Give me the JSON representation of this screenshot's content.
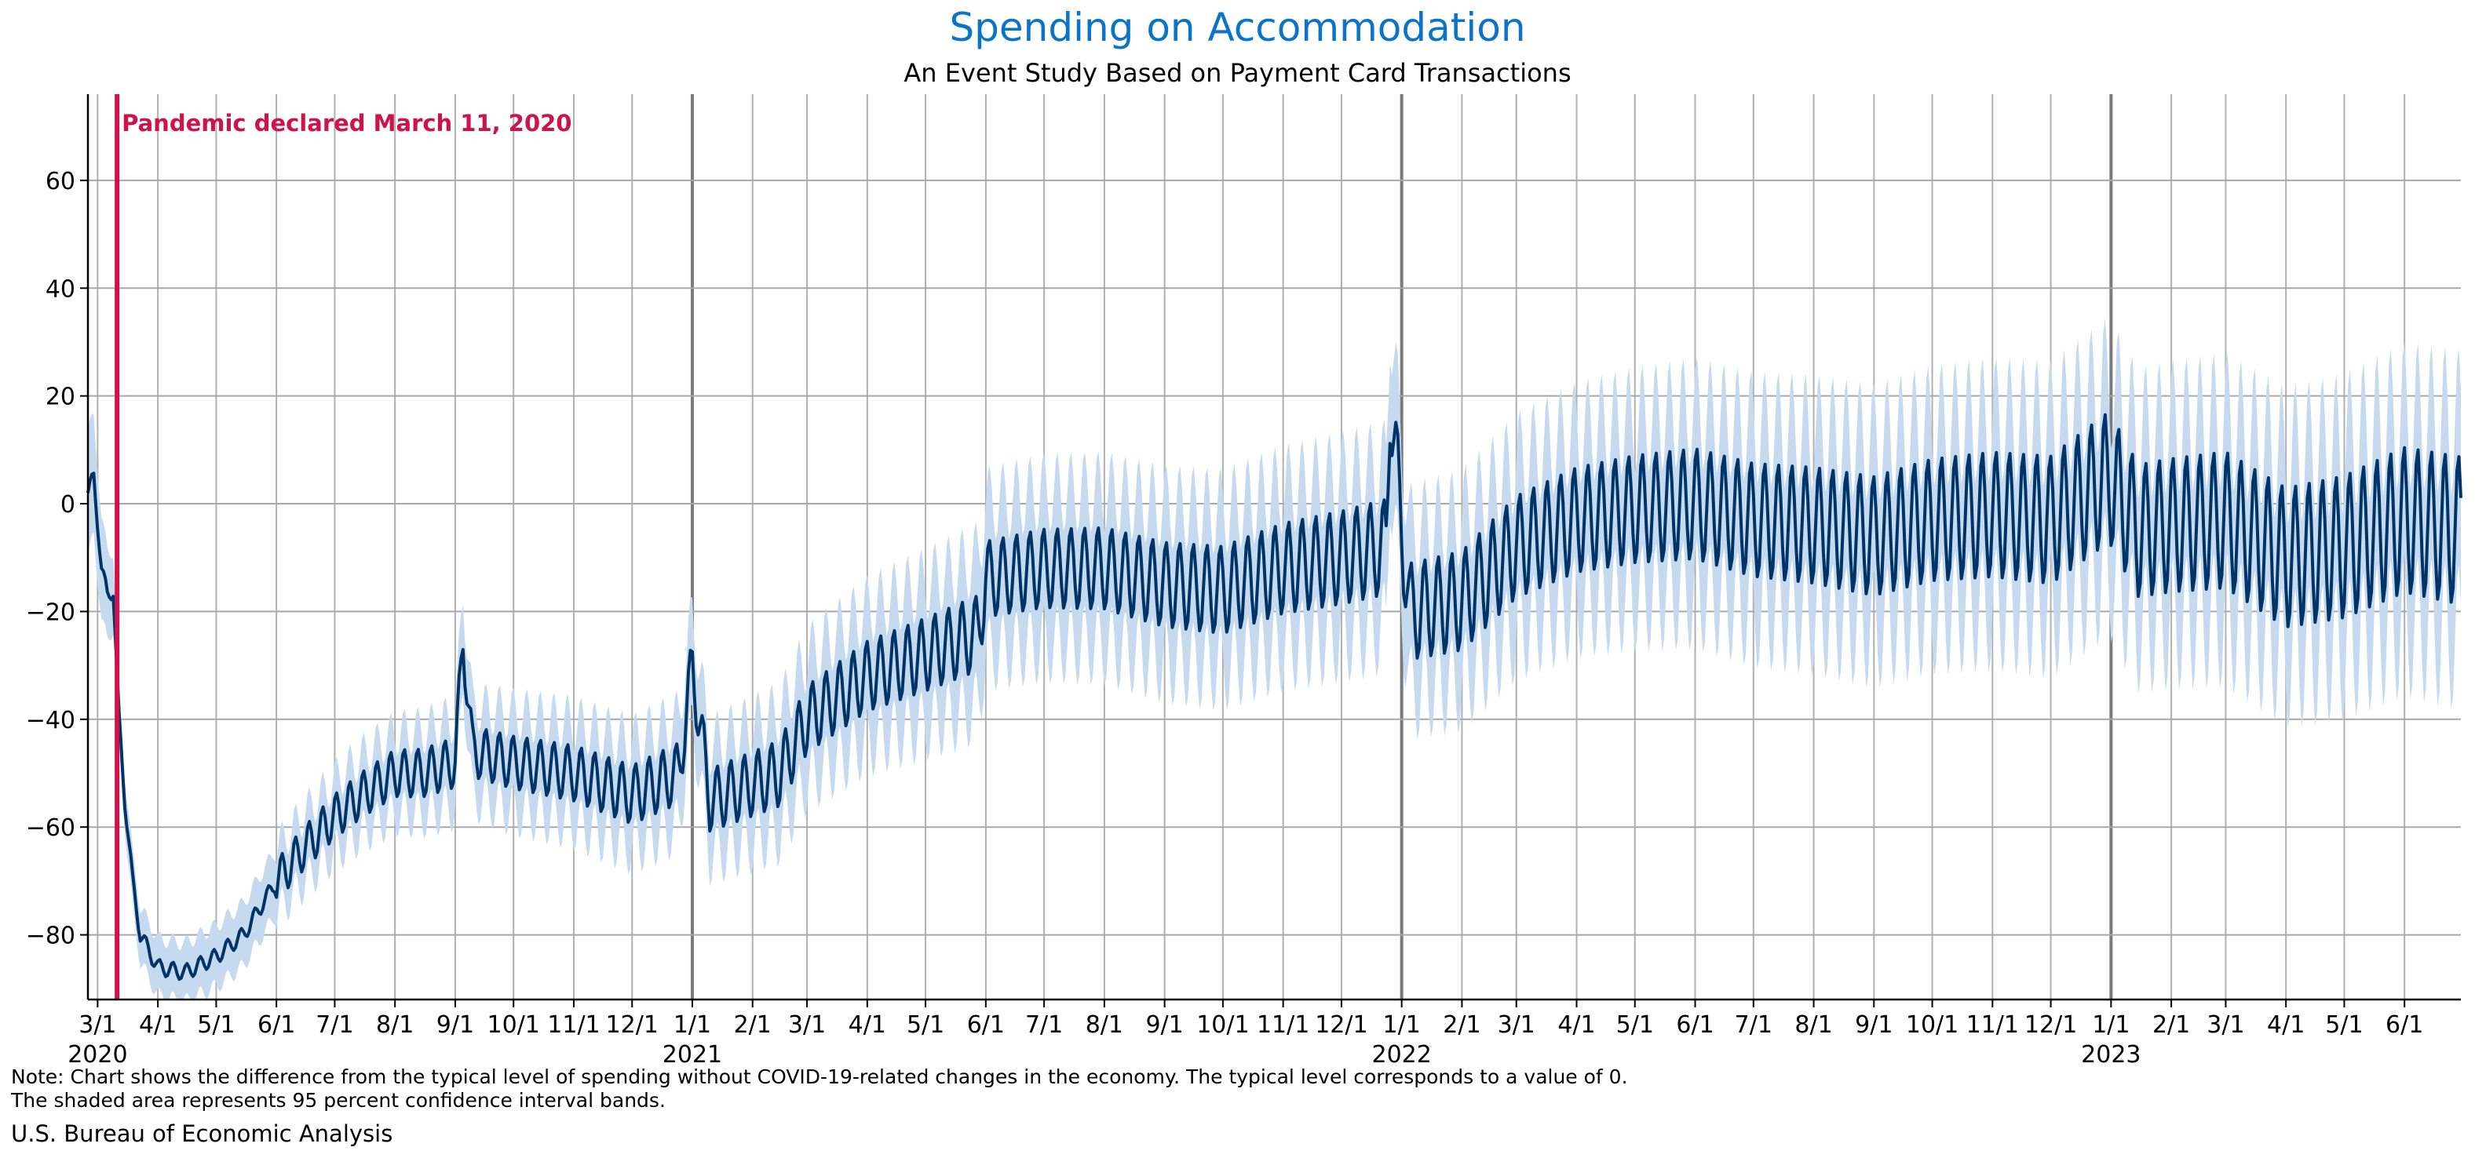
{
  "chart_data": {
    "type": "line",
    "title": "Spending on Accommodation",
    "subtitle": "An Event Study Based on Payment Card Transactions",
    "xlabel": "",
    "ylabel": "",
    "x_range": [
      "2020-02-25",
      "2023-06-30"
    ],
    "ylim": [
      -92,
      76
    ],
    "yticks": [
      -80,
      -60,
      -40,
      -20,
      0,
      20,
      40,
      60
    ],
    "month_tick_labels": [
      "3/1",
      "4/1",
      "5/1",
      "6/1",
      "7/1",
      "8/1",
      "9/1",
      "10/1",
      "11/1",
      "12/1",
      "1/1",
      "2/1",
      "3/1",
      "4/1",
      "5/1",
      "6/1",
      "7/1",
      "8/1",
      "9/1",
      "10/1",
      "11/1",
      "12/1",
      "1/1",
      "2/1",
      "3/1",
      "4/1",
      "5/1",
      "6/1",
      "7/1",
      "8/1",
      "9/1",
      "10/1",
      "11/1",
      "12/1",
      "1/1",
      "2/1",
      "3/1",
      "4/1",
      "5/1",
      "6/1"
    ],
    "year_labels": [
      "2020",
      "2021",
      "2022",
      "2023"
    ],
    "grid": true,
    "annotation": {
      "date": "2020-03-11",
      "text": "Pandemic declared March 11, 2020",
      "color": "#d0114a"
    },
    "series": [
      {
        "role": "estimate",
        "color": "#003366",
        "points": [
          [
            "2020-02-25",
            2
          ],
          [
            "2020-02-28",
            5
          ],
          [
            "2020-03-03",
            -12
          ],
          [
            "2020-03-06",
            -17
          ],
          [
            "2020-03-09",
            -16
          ],
          [
            "2020-03-12",
            -40
          ],
          [
            "2020-03-15",
            -55
          ],
          [
            "2020-03-19",
            -70
          ],
          [
            "2020-03-23",
            -80
          ],
          [
            "2020-04-01",
            -86
          ],
          [
            "2020-04-15",
            -87
          ],
          [
            "2020-05-01",
            -84
          ],
          [
            "2020-05-15",
            -80
          ],
          [
            "2020-06-01",
            -70
          ],
          [
            "2020-06-15",
            -64
          ],
          [
            "2020-07-01",
            -58
          ],
          [
            "2020-07-15",
            -54
          ],
          [
            "2020-08-01",
            -50
          ],
          [
            "2020-08-15",
            -50
          ],
          [
            "2020-09-01",
            -48
          ],
          [
            "2020-09-05",
            -25
          ],
          [
            "2020-09-10",
            -46
          ],
          [
            "2020-10-01",
            -48
          ],
          [
            "2020-11-01",
            -50
          ],
          [
            "2020-12-01",
            -54
          ],
          [
            "2020-12-25",
            -50
          ],
          [
            "2021-01-01",
            -30
          ],
          [
            "2021-01-10",
            -55
          ],
          [
            "2021-02-01",
            -52
          ],
          [
            "2021-02-15",
            -50
          ],
          [
            "2021-03-01",
            -40
          ],
          [
            "2021-04-01",
            -32
          ],
          [
            "2021-05-01",
            -28
          ],
          [
            "2021-05-28",
            -24
          ],
          [
            "2021-06-01",
            -14
          ],
          [
            "2021-07-01",
            -12
          ],
          [
            "2021-08-01",
            -12
          ],
          [
            "2021-09-01",
            -15
          ],
          [
            "2021-10-01",
            -16
          ],
          [
            "2021-11-01",
            -12
          ],
          [
            "2021-12-01",
            -10
          ],
          [
            "2021-12-24",
            -8
          ],
          [
            "2021-12-26",
            20
          ],
          [
            "2022-01-05",
            -20
          ],
          [
            "2022-02-01",
            -18
          ],
          [
            "2022-03-01",
            -8
          ],
          [
            "2022-04-01",
            -3
          ],
          [
            "2022-05-01",
            -1
          ],
          [
            "2022-06-01",
            0
          ],
          [
            "2022-07-01",
            -3
          ],
          [
            "2022-08-01",
            -4
          ],
          [
            "2022-09-01",
            -6
          ],
          [
            "2022-10-01",
            -3
          ],
          [
            "2022-11-01",
            -2
          ],
          [
            "2022-12-01",
            -3
          ],
          [
            "2022-12-31",
            5
          ],
          [
            "2023-01-15",
            -5
          ],
          [
            "2023-02-01",
            -4
          ],
          [
            "2023-03-01",
            -3
          ],
          [
            "2023-04-01",
            -10
          ],
          [
            "2023-05-01",
            -8
          ],
          [
            "2023-06-01",
            -3
          ],
          [
            "2023-06-30",
            -5
          ]
        ]
      },
      {
        "role": "confidence-band-95",
        "color": "#c5d9ef",
        "half_width_by_period": [
          [
            "2020-02-25",
            12
          ],
          [
            "2020-03-15",
            5
          ],
          [
            "2020-06-01",
            6
          ],
          [
            "2020-10-01",
            9
          ],
          [
            "2021-01-01",
            10
          ],
          [
            "2021-06-01",
            14
          ],
          [
            "2022-01-01",
            15
          ],
          [
            "2022-06-01",
            17
          ],
          [
            "2023-01-01",
            18
          ],
          [
            "2023-06-30",
            20
          ]
        ]
      }
    ]
  },
  "note_line1": "Note: Chart shows the difference from the typical level of spending without COVID-19-related changes in the economy. The typical level corresponds to a value of 0.",
  "note_line2": "The shaded area represents 95 percent confidence interval bands.",
  "source": "U.S. Bureau of Economic Analysis"
}
